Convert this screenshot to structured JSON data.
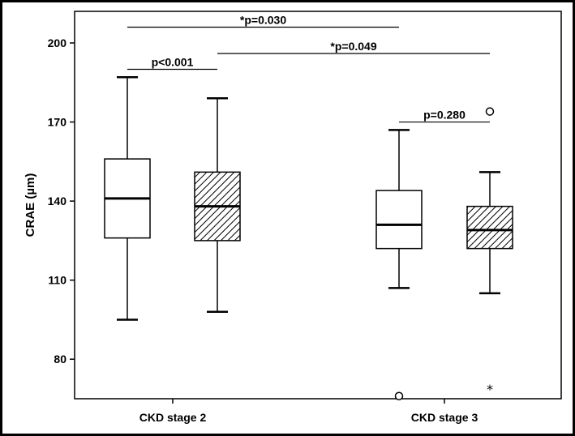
{
  "chart_data": {
    "type": "boxplot",
    "ylabel": "CRAE (µm)",
    "ylim": [
      65,
      212
    ],
    "yticks": [
      80,
      110,
      140,
      170,
      200
    ],
    "categories": [
      "CKD stage 2",
      "CKD stage 3"
    ],
    "boxes": [
      {
        "group": "CKD stage 2",
        "fill": "plain",
        "whisker_low": 95,
        "q1": 126,
        "median": 141,
        "q3": 156,
        "whisker_high": 187,
        "outliers": []
      },
      {
        "group": "CKD stage 2",
        "fill": "hatched",
        "whisker_low": 98,
        "q1": 125,
        "median": 138,
        "q3": 151,
        "whisker_high": 179,
        "outliers": []
      },
      {
        "group": "CKD stage 3",
        "fill": "plain",
        "whisker_low": 107,
        "q1": 122,
        "median": 131,
        "q3": 144,
        "whisker_high": 167,
        "outliers": [
          {
            "value": 66,
            "marker": "circle"
          }
        ]
      },
      {
        "group": "CKD stage 3",
        "fill": "hatched",
        "whisker_low": 105,
        "q1": 122,
        "median": 129,
        "q3": 138,
        "whisker_high": 151,
        "outliers": [
          {
            "value": 174,
            "marker": "circle"
          },
          {
            "value": 69,
            "marker": "star"
          }
        ]
      }
    ],
    "comparisons": [
      {
        "from_box": 0,
        "to_box": 1,
        "label": "p<0.001",
        "y": 190
      },
      {
        "from_box": 2,
        "to_box": 3,
        "label": "p=0.280",
        "y": 170
      },
      {
        "from_box": 1,
        "to_box": 3,
        "label": "*p=0.049",
        "y": 196
      },
      {
        "from_box": 0,
        "to_box": 2,
        "label": "*p=0.030",
        "y": 206
      }
    ]
  }
}
